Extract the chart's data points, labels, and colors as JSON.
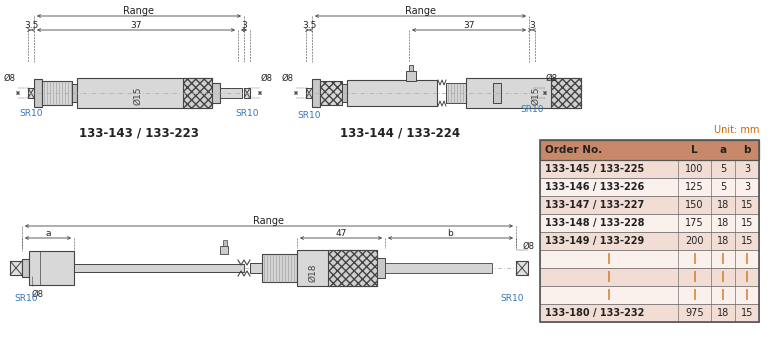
{
  "bg_color": "#ffffff",
  "table_header_color": "#c8896a",
  "table_row_colors": [
    "#f2ddd5",
    "#faf0ec"
  ],
  "table_border_color": "#555555",
  "draw_fill": "#d4d4d4",
  "draw_fill_dark": "#b8b8b8",
  "draw_line": "#444444",
  "dim_color": "#222222",
  "sr10_color": "#3377bb",
  "orange_color": "#cc6600",
  "table_headers": [
    "Order No.",
    "L",
    "a",
    "b"
  ],
  "table_rows": [
    [
      "133-145 / 133-225",
      "100",
      "5",
      "3"
    ],
    [
      "133-146 / 133-226",
      "125",
      "5",
      "3"
    ],
    [
      "133-147 / 133-227",
      "150",
      "18",
      "15"
    ],
    [
      "133-148 / 133-228",
      "175",
      "18",
      "15"
    ],
    [
      "133-149 / 133-229",
      "200",
      "18",
      "15"
    ],
    [
      "",
      "",
      "",
      ""
    ],
    [
      "",
      "",
      "",
      ""
    ],
    [
      "",
      "",
      "",
      ""
    ],
    [
      "133-180 / 133-232",
      "975",
      "18",
      "15"
    ]
  ],
  "unit_text": "Unit: mm",
  "fig1_label": "133-143 / 133-223",
  "fig2_label": "133-144 / 133-224",
  "dim_35": "3.5",
  "dim_37": "37",
  "dim_3": "3",
  "dim_47": "47",
  "dim_range": "Range",
  "dim_phi8": "Ø8",
  "dim_phi15": "Ø15",
  "dim_phi18": "Ø18",
  "dim_a": "a",
  "dim_b": "b",
  "sr10_text": "SR10"
}
